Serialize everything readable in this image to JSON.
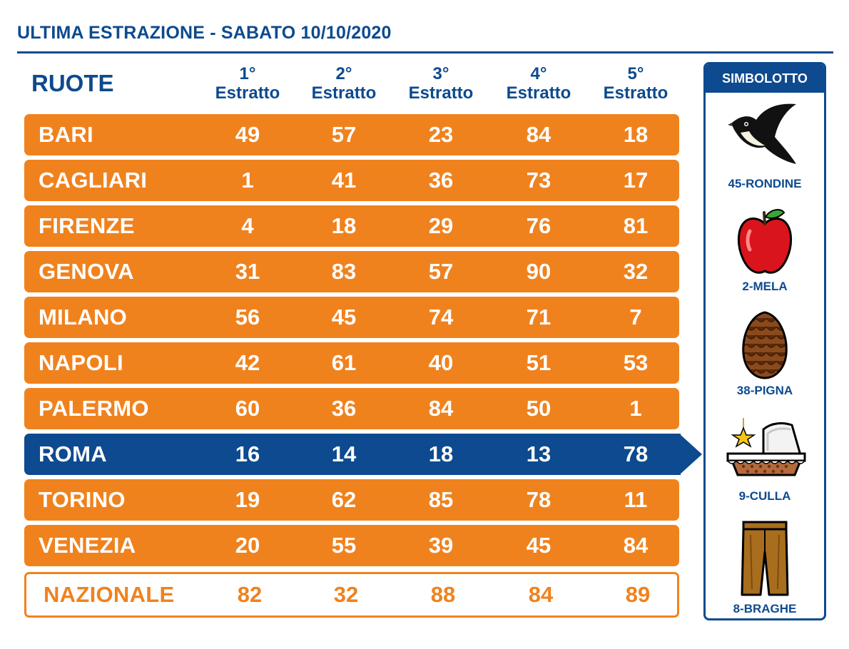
{
  "title": "ULTIMA ESTRAZIONE - SABATO 10/10/2020",
  "ruote_header": "RUOTE",
  "columns": [
    {
      "ord": "1°",
      "label": "Estratto"
    },
    {
      "ord": "2°",
      "label": "Estratto"
    },
    {
      "ord": "3°",
      "label": "Estratto"
    },
    {
      "ord": "4°",
      "label": "Estratto"
    },
    {
      "ord": "5°",
      "label": "Estratto"
    }
  ],
  "rows": [
    {
      "name": "BARI",
      "numbers": [
        "49",
        "57",
        "23",
        "84",
        "18"
      ]
    },
    {
      "name": "CAGLIARI",
      "numbers": [
        "1",
        "41",
        "36",
        "73",
        "17"
      ]
    },
    {
      "name": "FIRENZE",
      "numbers": [
        "4",
        "18",
        "29",
        "76",
        "81"
      ]
    },
    {
      "name": "GENOVA",
      "numbers": [
        "31",
        "83",
        "57",
        "90",
        "32"
      ]
    },
    {
      "name": "MILANO",
      "numbers": [
        "56",
        "45",
        "74",
        "71",
        "7"
      ]
    },
    {
      "name": "NAPOLI",
      "numbers": [
        "42",
        "61",
        "40",
        "51",
        "53"
      ]
    },
    {
      "name": "PALERMO",
      "numbers": [
        "60",
        "36",
        "84",
        "50",
        "1"
      ]
    },
    {
      "name": "ROMA",
      "numbers": [
        "16",
        "14",
        "18",
        "13",
        "78"
      ]
    },
    {
      "name": "TORINO",
      "numbers": [
        "19",
        "62",
        "85",
        "78",
        "11"
      ]
    },
    {
      "name": "VENEZIA",
      "numbers": [
        "20",
        "55",
        "39",
        "45",
        "84"
      ]
    },
    {
      "name": "NAZIONALE",
      "numbers": [
        "82",
        "32",
        "88",
        "84",
        "89"
      ]
    }
  ],
  "simbolotto": {
    "header": "SIMBOLOTTO",
    "items": [
      {
        "label": "45-RONDINE",
        "icon": "swallow-icon"
      },
      {
        "label": "2-MELA",
        "icon": "apple-icon"
      },
      {
        "label": "38-PIGNA",
        "icon": "pinecone-icon"
      },
      {
        "label": "9-CULLA",
        "icon": "cradle-icon"
      },
      {
        "label": "8-BRAGHE",
        "icon": "trousers-icon"
      }
    ]
  },
  "colors": {
    "primary_blue": "#0d4a8f",
    "orange": "#f0821e",
    "white": "#ffffff"
  }
}
